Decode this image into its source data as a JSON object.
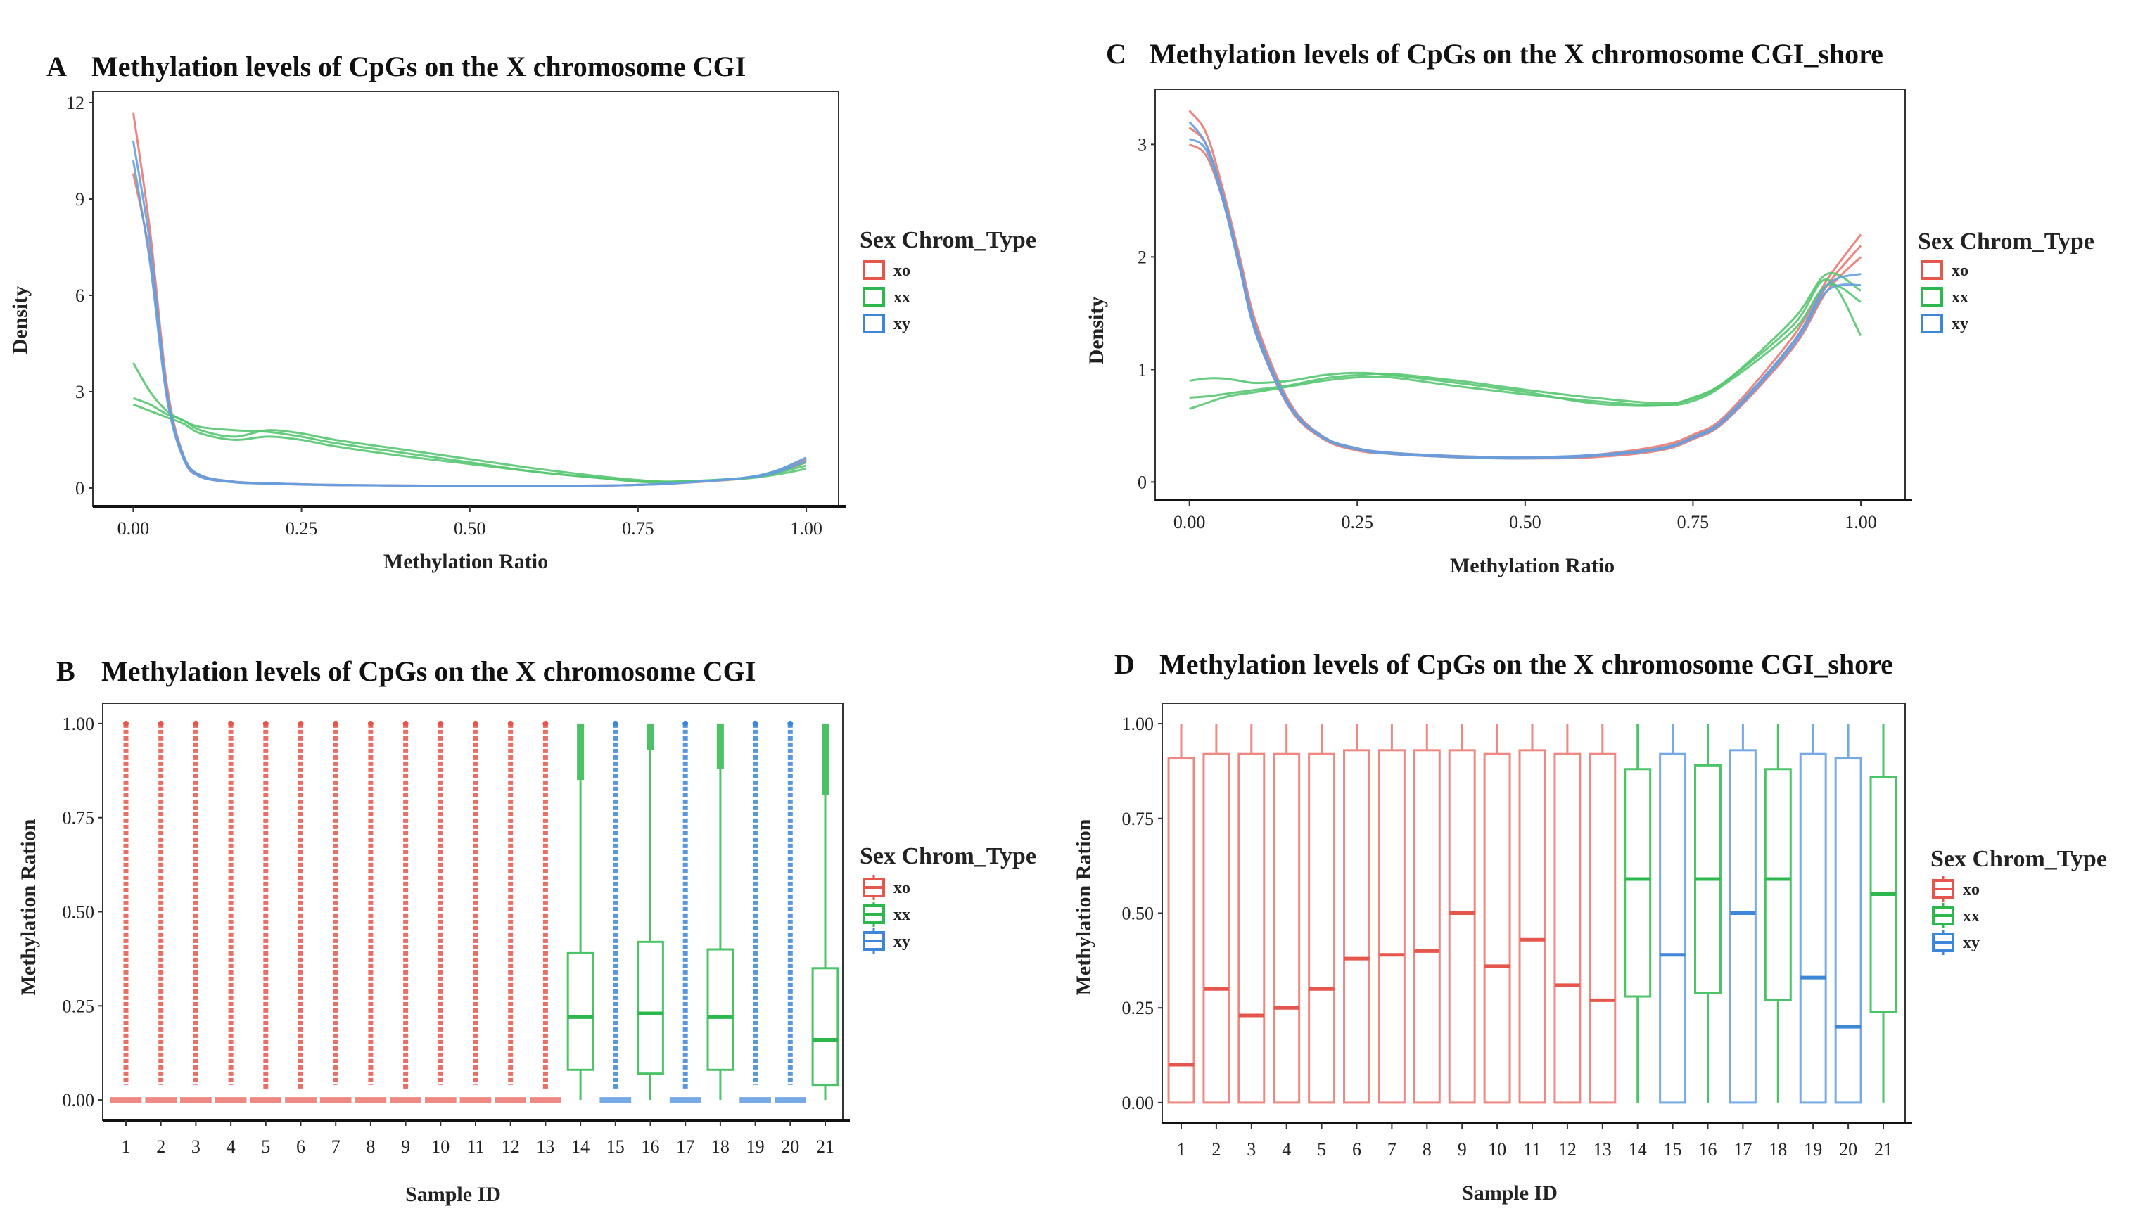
{
  "colors": {
    "xo": "#e5574c",
    "xx": "#2db84d",
    "xy": "#3d86d8"
  },
  "chart_data": [
    {
      "panel": "A",
      "type": "line",
      "title": "Methylation levels of CpGs on the X chromosome CGI",
      "xlabel": "Methylation Ratio",
      "ylabel": "Density",
      "xlim": [
        -0.06,
        1.048
      ],
      "ylim": [
        -0.57,
        12.35
      ],
      "xticks": [
        "0.00",
        "0.25",
        "0.50",
        "0.75",
        "1.00"
      ],
      "yticks": [
        "0",
        "3",
        "6",
        "9",
        "12"
      ],
      "legend_title": "Sex Chrom_Type",
      "legend": [
        "xo",
        "xx",
        "xy"
      ],
      "legend_position": "right",
      "x": [
        0,
        0.025,
        0.05,
        0.075,
        0.1,
        0.15,
        0.2,
        0.25,
        0.3,
        0.4,
        0.5,
        0.6,
        0.7,
        0.75,
        0.8,
        0.9,
        0.95,
        1.0
      ],
      "series": [
        {
          "group": "xo",
          "values": [
            11.7,
            8.0,
            3.2,
            1.0,
            0.4,
            0.2,
            0.15,
            0.12,
            0.1,
            0.08,
            0.07,
            0.07,
            0.08,
            0.1,
            0.15,
            0.3,
            0.5,
            0.9
          ]
        },
        {
          "group": "xo",
          "values": [
            9.8,
            7.2,
            2.9,
            0.9,
            0.35,
            0.18,
            0.14,
            0.11,
            0.09,
            0.08,
            0.07,
            0.07,
            0.08,
            0.1,
            0.14,
            0.28,
            0.45,
            0.8
          ]
        },
        {
          "group": "xx",
          "values": [
            3.9,
            3.0,
            2.4,
            2.1,
            1.9,
            1.8,
            1.75,
            1.6,
            1.4,
            1.1,
            0.8,
            0.5,
            0.3,
            0.22,
            0.2,
            0.3,
            0.5,
            0.8
          ]
        },
        {
          "group": "xx",
          "values": [
            2.8,
            2.6,
            2.3,
            2.1,
            1.8,
            1.6,
            1.8,
            1.7,
            1.5,
            1.2,
            0.9,
            0.6,
            0.35,
            0.25,
            0.2,
            0.3,
            0.45,
            0.7
          ]
        },
        {
          "group": "xx",
          "values": [
            2.6,
            2.4,
            2.2,
            2.0,
            1.7,
            1.5,
            1.6,
            1.5,
            1.3,
            1.0,
            0.75,
            0.5,
            0.3,
            0.2,
            0.18,
            0.28,
            0.4,
            0.6
          ]
        },
        {
          "group": "xy",
          "values": [
            10.8,
            7.6,
            3.0,
            1.0,
            0.4,
            0.2,
            0.15,
            0.12,
            0.1,
            0.08,
            0.07,
            0.07,
            0.08,
            0.1,
            0.15,
            0.3,
            0.45,
            0.85
          ]
        },
        {
          "group": "xy",
          "values": [
            10.2,
            7.0,
            2.8,
            0.9,
            0.35,
            0.18,
            0.14,
            0.11,
            0.09,
            0.08,
            0.07,
            0.07,
            0.08,
            0.1,
            0.14,
            0.3,
            0.5,
            0.95
          ]
        }
      ]
    },
    {
      "panel": "C",
      "type": "line",
      "title": "Methylation levels of CpGs on the X chromosome CGI_shore",
      "xlabel": "Methylation Ratio",
      "ylabel": "Density",
      "xlim": [
        -0.051,
        1.066
      ],
      "ylim": [
        -0.16,
        3.49
      ],
      "xticks": [
        "0.00",
        "0.25",
        "0.50",
        "0.75",
        "1.00"
      ],
      "yticks": [
        "0",
        "1",
        "2",
        "3"
      ],
      "legend_title": "Sex Chrom_Type",
      "legend": [
        "xo",
        "xx",
        "xy"
      ],
      "legend_position": "right",
      "x": [
        0,
        0.025,
        0.05,
        0.075,
        0.1,
        0.15,
        0.2,
        0.25,
        0.3,
        0.4,
        0.5,
        0.6,
        0.7,
        0.75,
        0.8,
        0.9,
        0.95,
        1.0
      ],
      "series": [
        {
          "group": "xo",
          "values": [
            3.3,
            3.1,
            2.6,
            2.0,
            1.4,
            0.7,
            0.4,
            0.3,
            0.26,
            0.23,
            0.22,
            0.24,
            0.32,
            0.42,
            0.6,
            1.3,
            1.8,
            2.2
          ]
        },
        {
          "group": "xo",
          "values": [
            3.0,
            2.9,
            2.5,
            1.9,
            1.3,
            0.65,
            0.38,
            0.28,
            0.25,
            0.22,
            0.21,
            0.22,
            0.28,
            0.38,
            0.55,
            1.2,
            1.7,
            2.0
          ]
        },
        {
          "group": "xo",
          "values": [
            3.15,
            3.0,
            2.55,
            1.95,
            1.35,
            0.67,
            0.39,
            0.29,
            0.25,
            0.22,
            0.21,
            0.23,
            0.3,
            0.4,
            0.57,
            1.25,
            1.75,
            2.1
          ]
        },
        {
          "group": "xx",
          "values": [
            0.9,
            0.92,
            0.92,
            0.9,
            0.88,
            0.9,
            0.95,
            0.97,
            0.95,
            0.88,
            0.8,
            0.7,
            0.68,
            0.75,
            0.9,
            1.4,
            1.8,
            1.3
          ]
        },
        {
          "group": "xx",
          "values": [
            0.65,
            0.7,
            0.75,
            0.78,
            0.8,
            0.85,
            0.9,
            0.93,
            0.93,
            0.85,
            0.78,
            0.72,
            0.68,
            0.72,
            0.88,
            1.35,
            1.75,
            1.6
          ]
        },
        {
          "group": "xx",
          "values": [
            0.75,
            0.76,
            0.78,
            0.8,
            0.82,
            0.86,
            0.92,
            0.95,
            0.96,
            0.9,
            0.82,
            0.75,
            0.7,
            0.74,
            0.9,
            1.45,
            1.85,
            1.7
          ]
        },
        {
          "group": "xy",
          "values": [
            3.2,
            3.0,
            2.55,
            1.95,
            1.35,
            0.68,
            0.4,
            0.3,
            0.26,
            0.23,
            0.22,
            0.24,
            0.3,
            0.4,
            0.58,
            1.25,
            1.75,
            1.85
          ]
        },
        {
          "group": "xy",
          "values": [
            3.05,
            2.95,
            2.5,
            1.9,
            1.3,
            0.66,
            0.39,
            0.29,
            0.25,
            0.22,
            0.21,
            0.23,
            0.29,
            0.39,
            0.56,
            1.22,
            1.7,
            1.75
          ]
        }
      ]
    },
    {
      "panel": "B",
      "type": "box",
      "title": "Methylation levels of CpGs on the X chromosome CGI",
      "xlabel": "Sample ID",
      "ylabel": "Methylation Ration",
      "ylim": [
        -0.054,
        1.054
      ],
      "yticks": [
        "0.00",
        "0.25",
        "0.50",
        "0.75",
        "1.00"
      ],
      "legend_title": "Sex Chrom_Type",
      "legend": [
        "xo",
        "xx",
        "xy"
      ],
      "legend_position": "right",
      "categories": [
        "1",
        "2",
        "3",
        "4",
        "5",
        "6",
        "7",
        "8",
        "9",
        "10",
        "11",
        "12",
        "13",
        "14",
        "15",
        "16",
        "17",
        "18",
        "19",
        "20",
        "21"
      ],
      "groups": [
        "xo",
        "xo",
        "xo",
        "xo",
        "xo",
        "xo",
        "xo",
        "xo",
        "xo",
        "xo",
        "xo",
        "xo",
        "xo",
        "xx",
        "xy",
        "xx",
        "xy",
        "xx",
        "xy",
        "xy",
        "xx"
      ],
      "boxes": [
        [
          0,
          0,
          0,
          0,
          0
        ],
        [
          0,
          0,
          0,
          0,
          0
        ],
        [
          0,
          0,
          0,
          0,
          0
        ],
        [
          0,
          0,
          0,
          0,
          0
        ],
        [
          0,
          0,
          0,
          0,
          0
        ],
        [
          0,
          0,
          0,
          0,
          0
        ],
        [
          0,
          0,
          0,
          0,
          0
        ],
        [
          0,
          0,
          0,
          0,
          0
        ],
        [
          0,
          0,
          0,
          0,
          0
        ],
        [
          0,
          0,
          0,
          0,
          0
        ],
        [
          0,
          0,
          0,
          0,
          0
        ],
        [
          0,
          0,
          0,
          0,
          0
        ],
        [
          0,
          0,
          0,
          0,
          0
        ],
        [
          0,
          0.08,
          0.22,
          0.39,
          0.85
        ],
        [
          0,
          0,
          0,
          0,
          0
        ],
        [
          0,
          0.07,
          0.23,
          0.42,
          0.93
        ],
        [
          0,
          0,
          0,
          0,
          0
        ],
        [
          0,
          0.08,
          0.22,
          0.4,
          0.88
        ],
        [
          0,
          0,
          0,
          0,
          0
        ],
        [
          0,
          0,
          0,
          0,
          0
        ],
        [
          0,
          0.04,
          0.16,
          0.35,
          0.81
        ]
      ],
      "outlier_range": [
        [
          0.04,
          1
        ],
        [
          0.04,
          1
        ],
        [
          0.04,
          1
        ],
        [
          0.04,
          1
        ],
        [
          0.03,
          1
        ],
        [
          0.03,
          1
        ],
        [
          0.04,
          1
        ],
        [
          0.04,
          1
        ],
        [
          0.03,
          1
        ],
        [
          0.04,
          1
        ],
        [
          0.04,
          1
        ],
        [
          0.04,
          1
        ],
        [
          0.03,
          1
        ],
        [
          0.85,
          1
        ],
        [
          0.03,
          1
        ],
        [
          0.93,
          1
        ],
        [
          0.03,
          1
        ],
        [
          0.88,
          1
        ],
        [
          0.04,
          1
        ],
        [
          0.04,
          1
        ],
        [
          0.81,
          1
        ]
      ]
    },
    {
      "panel": "D",
      "type": "box",
      "title": "Methylation levels of CpGs on the X chromosome CGI_shore",
      "xlabel": "Sample ID",
      "ylabel": "Methylation Ration",
      "ylim": [
        -0.054,
        1.054
      ],
      "yticks": [
        "0.00",
        "0.25",
        "0.50",
        "0.75",
        "1.00"
      ],
      "legend_title": "Sex Chrom_Type",
      "legend": [
        "xo",
        "xx",
        "xy"
      ],
      "legend_position": "right",
      "categories": [
        "1",
        "2",
        "3",
        "4",
        "5",
        "6",
        "7",
        "8",
        "9",
        "10",
        "11",
        "12",
        "13",
        "14",
        "15",
        "16",
        "17",
        "18",
        "19",
        "20",
        "21"
      ],
      "groups": [
        "xo",
        "xo",
        "xo",
        "xo",
        "xo",
        "xo",
        "xo",
        "xo",
        "xo",
        "xo",
        "xo",
        "xo",
        "xo",
        "xx",
        "xy",
        "xx",
        "xy",
        "xx",
        "xy",
        "xy",
        "xx"
      ],
      "boxes": [
        [
          0,
          0,
          0.1,
          0.91,
          1
        ],
        [
          0,
          0,
          0.3,
          0.92,
          1
        ],
        [
          0,
          0,
          0.23,
          0.92,
          1
        ],
        [
          0,
          0,
          0.25,
          0.92,
          1
        ],
        [
          0,
          0,
          0.3,
          0.92,
          1
        ],
        [
          0,
          0,
          0.38,
          0.93,
          1
        ],
        [
          0,
          0,
          0.39,
          0.93,
          1
        ],
        [
          0,
          0,
          0.4,
          0.93,
          1
        ],
        [
          0,
          0,
          0.5,
          0.93,
          1
        ],
        [
          0,
          0,
          0.36,
          0.92,
          1
        ],
        [
          0,
          0,
          0.43,
          0.93,
          1
        ],
        [
          0,
          0,
          0.31,
          0.92,
          1
        ],
        [
          0,
          0,
          0.27,
          0.92,
          1
        ],
        [
          0,
          0.28,
          0.59,
          0.88,
          1
        ],
        [
          0,
          0,
          0.39,
          0.92,
          1
        ],
        [
          0,
          0.29,
          0.59,
          0.89,
          1
        ],
        [
          0,
          0,
          0.5,
          0.93,
          1
        ],
        [
          0,
          0.27,
          0.59,
          0.88,
          1
        ],
        [
          0,
          0,
          0.33,
          0.92,
          1
        ],
        [
          0,
          0,
          0.2,
          0.91,
          1
        ],
        [
          0,
          0.24,
          0.55,
          0.86,
          1
        ]
      ]
    }
  ]
}
